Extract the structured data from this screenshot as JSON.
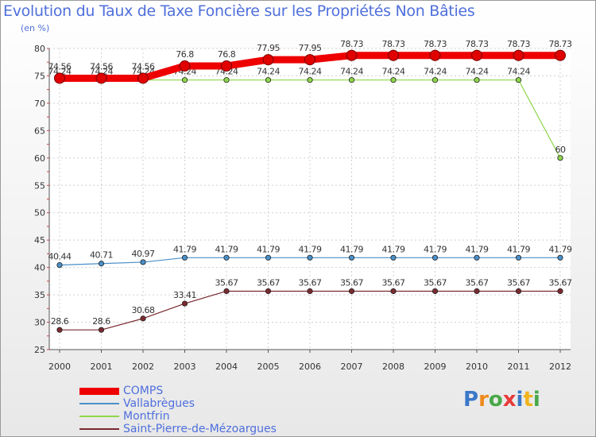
{
  "chart_data": {
    "type": "line",
    "title": "Evolution du Taux de Taxe Foncière sur les Propriétés Non Bâties",
    "subtitle": "(en %)",
    "x": [
      "2000",
      "2001",
      "2002",
      "2003",
      "2004",
      "2005",
      "2006",
      "2007",
      "2008",
      "2009",
      "2010",
      "2011",
      "2012"
    ],
    "ylim": [
      25,
      80
    ],
    "yticks": [
      25,
      30,
      35,
      40,
      45,
      50,
      55,
      60,
      65,
      70,
      75,
      80
    ],
    "grid": true,
    "legend_position": "bottom-left",
    "series": [
      {
        "name": "COMPS",
        "color": "#ee0000",
        "values": [
          74.56,
          74.56,
          74.56,
          76.8,
          76.8,
          77.95,
          77.95,
          78.73,
          78.73,
          78.73,
          78.73,
          78.73,
          78.73
        ],
        "labels": [
          "74.56",
          "74.56",
          "74.56",
          "76.8",
          "76.8",
          "77.95",
          "77.95",
          "78.73",
          "78.73",
          "78.73",
          "78.73",
          "78.73",
          "78.73"
        ]
      },
      {
        "name": "Vallabrègues",
        "color": "#4a8fc8",
        "values": [
          40.44,
          40.71,
          40.97,
          41.79,
          41.79,
          41.79,
          41.79,
          41.79,
          41.79,
          41.79,
          41.79,
          41.79,
          41.79
        ],
        "labels": [
          "40.44",
          "40.71",
          "40.97",
          "41.79",
          "41.79",
          "41.79",
          "41.79",
          "41.79",
          "41.79",
          "41.79",
          "41.79",
          "41.79",
          "41.79"
        ]
      },
      {
        "name": "Montfrin",
        "color": "#8fd64a",
        "values": [
          74.24,
          74.24,
          74.24,
          74.24,
          74.24,
          74.24,
          74.24,
          74.24,
          74.24,
          74.24,
          74.24,
          74.24,
          60
        ],
        "labels": [
          "74.24",
          "74.24",
          "74.24",
          "74.24",
          "74.24",
          "74.24",
          "74.24",
          "74.24",
          "74.24",
          "74.24",
          "74.24",
          "74.24",
          "60"
        ]
      },
      {
        "name": "Saint-Pierre-de-Mézoargues",
        "color": "#7a2a30",
        "values": [
          28.6,
          28.6,
          30.68,
          33.41,
          35.67,
          35.67,
          35.67,
          35.67,
          35.67,
          35.67,
          35.67,
          35.67,
          35.67
        ],
        "labels": [
          "28.6",
          "28.6",
          "30.68",
          "33.41",
          "35.67",
          "35.67",
          "35.67",
          "35.67",
          "35.67",
          "35.67",
          "35.67",
          "35.67",
          "35.67"
        ]
      }
    ]
  },
  "brand": {
    "letters": [
      "P",
      "r",
      "o",
      "x",
      "i",
      "t",
      "i"
    ],
    "colors": [
      "#3a78c8",
      "#f08a1c",
      "#48a848",
      "#e83a3a",
      "#3a78c8",
      "#f0b41c",
      "#48a848"
    ]
  }
}
